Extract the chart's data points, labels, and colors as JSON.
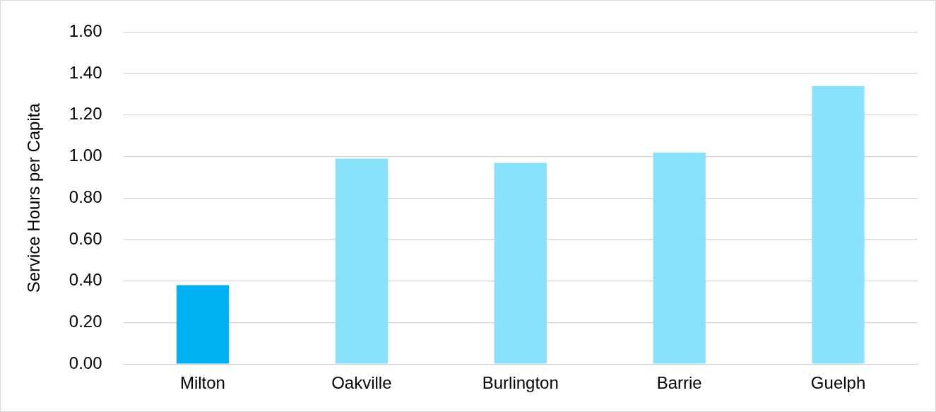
{
  "chart_data": {
    "type": "bar",
    "ylabel": "Service Hours per Capita",
    "categories": [
      "Milton",
      "Oakville",
      "Burlington",
      "Barrie",
      "Guelph"
    ],
    "values": [
      0.38,
      0.99,
      0.97,
      1.02,
      1.34
    ],
    "colors": [
      "#00b0f0",
      "#89e1fc",
      "#89e1fc",
      "#89e1fc",
      "#89e1fc"
    ],
    "ylim": [
      0,
      1.6
    ],
    "yticks": [
      {
        "value": 0,
        "label": "0.00"
      },
      {
        "value": 0.2,
        "label": "0.20"
      },
      {
        "value": 0.4,
        "label": "0.40"
      },
      {
        "value": 0.6,
        "label": "0.60"
      },
      {
        "value": 0.8,
        "label": "0.80"
      },
      {
        "value": 1,
        "label": "1.00"
      },
      {
        "value": 1.2,
        "label": "1.20"
      },
      {
        "value": 1.4,
        "label": "1.40"
      },
      {
        "value": 1.6,
        "label": "1.60"
      }
    ],
    "grid": "y",
    "legend": false
  }
}
